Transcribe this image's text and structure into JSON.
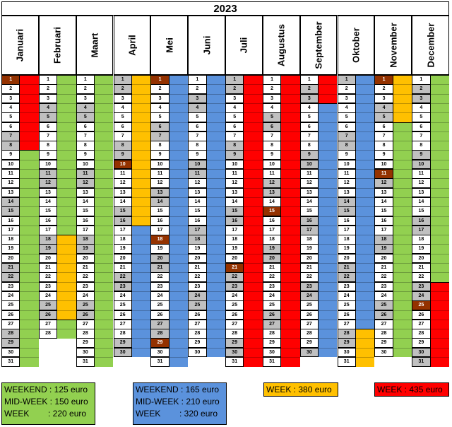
{
  "year": "2023",
  "colors": {
    "green": "#92d050",
    "blue": "#5b92dc",
    "orange": "#ffc000",
    "red": "#ff0000",
    "weekend_gray": "#c0c0c0",
    "highlight": "#943200"
  },
  "months": [
    {
      "name": "Januari",
      "days": 31,
      "first_weekday": 6,
      "highlights": [
        1
      ],
      "periods": [
        {
          "from": 1,
          "to": 8,
          "color": "red"
        },
        {
          "from": 9,
          "to": 31,
          "color": "green"
        }
      ]
    },
    {
      "name": "Februari",
      "days": 28,
      "first_weekday": 2,
      "highlights": [],
      "periods": [
        {
          "from": 1,
          "to": 17,
          "color": "green"
        },
        {
          "from": 18,
          "to": 26,
          "color": "orange"
        },
        {
          "from": 27,
          "to": 28,
          "color": "green"
        }
      ]
    },
    {
      "name": "Maart",
      "days": 31,
      "first_weekday": 2,
      "highlights": [],
      "periods": [
        {
          "from": 1,
          "to": 31,
          "color": "green"
        }
      ]
    },
    {
      "name": "April",
      "days": 30,
      "first_weekday": 5,
      "highlights": [
        10
      ],
      "periods": [
        {
          "from": 1,
          "to": 16,
          "color": "orange"
        },
        {
          "from": 17,
          "to": 30,
          "color": "blue"
        }
      ]
    },
    {
      "name": "Mei",
      "days": 31,
      "first_weekday": 0,
      "highlights": [
        1,
        18,
        29
      ],
      "periods": [
        {
          "from": 1,
          "to": 31,
          "color": "blue"
        }
      ]
    },
    {
      "name": "Juni",
      "days": 30,
      "first_weekday": 3,
      "highlights": [],
      "periods": [
        {
          "from": 1,
          "to": 30,
          "color": "blue"
        }
      ]
    },
    {
      "name": "Juli",
      "days": 31,
      "first_weekday": 5,
      "highlights": [
        21
      ],
      "periods": [
        {
          "from": 1,
          "to": 31,
          "color": "red"
        }
      ]
    },
    {
      "name": "Augustus",
      "days": 31,
      "first_weekday": 1,
      "highlights": [
        15
      ],
      "periods": [
        {
          "from": 1,
          "to": 31,
          "color": "red"
        }
      ]
    },
    {
      "name": "September",
      "days": 30,
      "first_weekday": 4,
      "highlights": [],
      "periods": [
        {
          "from": 1,
          "to": 3,
          "color": "red"
        },
        {
          "from": 4,
          "to": 30,
          "color": "blue"
        }
      ]
    },
    {
      "name": "Oktober",
      "days": 31,
      "first_weekday": 6,
      "highlights": [],
      "periods": [
        {
          "from": 1,
          "to": 27,
          "color": "blue"
        },
        {
          "from": 28,
          "to": 31,
          "color": "orange"
        }
      ]
    },
    {
      "name": "November",
      "days": 30,
      "first_weekday": 2,
      "highlights": [
        1,
        11
      ],
      "periods": [
        {
          "from": 1,
          "to": 5,
          "color": "orange"
        },
        {
          "from": 6,
          "to": 30,
          "color": "green"
        }
      ]
    },
    {
      "name": "December",
      "days": 31,
      "first_weekday": 4,
      "highlights": [
        25
      ],
      "periods": [
        {
          "from": 1,
          "to": 22,
          "color": "green"
        },
        {
          "from": 23,
          "to": 31,
          "color": "red"
        }
      ]
    }
  ],
  "legend": {
    "green": [
      "WEEKEND : 125 euro",
      "MID-WEEK : 150 euro",
      "WEEK        : 220 euro"
    ],
    "blue": [
      "WEEKEND : 165 euro",
      "MID-WEEK : 210 euro",
      "WEEK        : 320 euro"
    ],
    "orange": [
      "WEEK : 380 euro"
    ],
    "red": [
      "WEEK : 435 euro"
    ]
  }
}
